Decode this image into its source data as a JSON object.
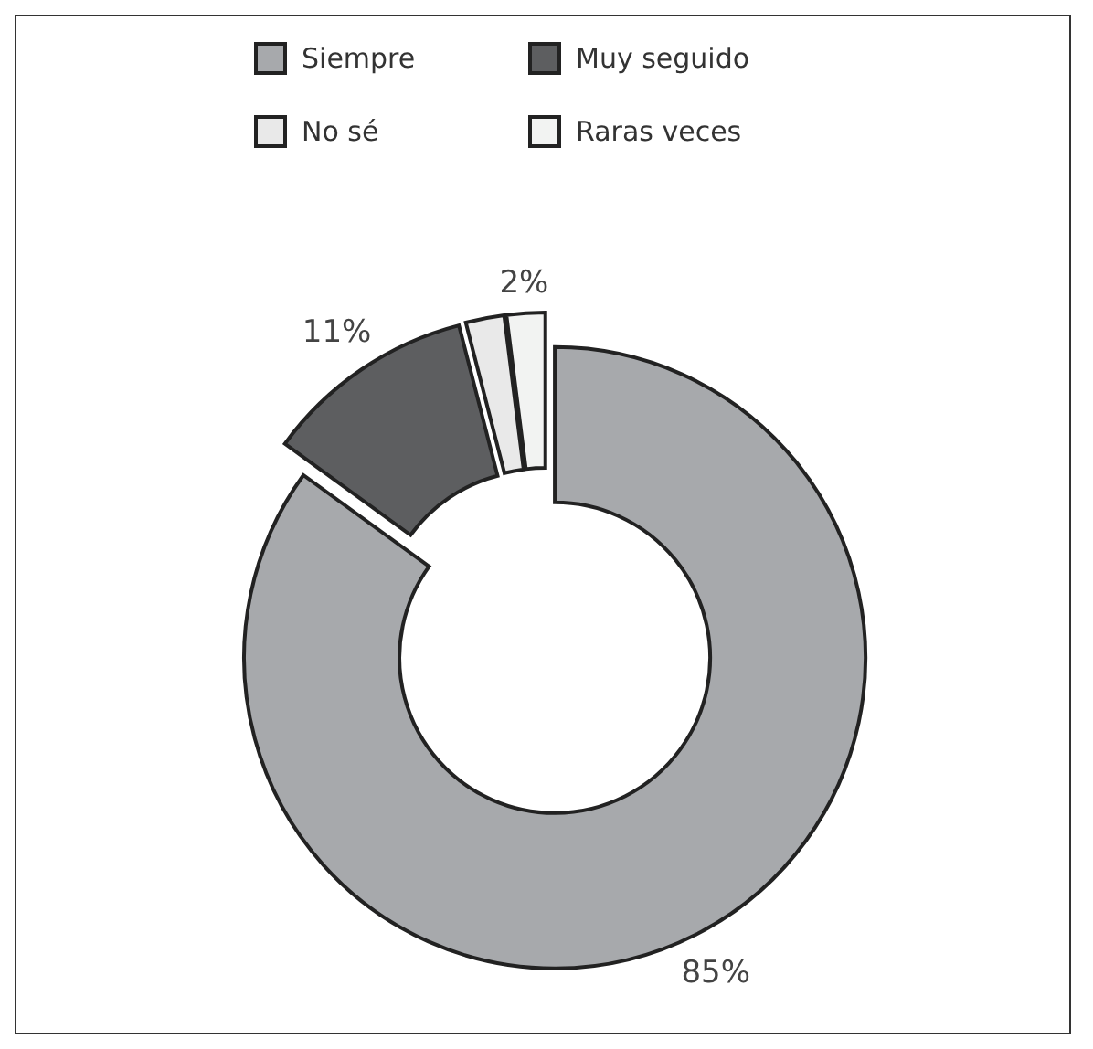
{
  "chart_data": {
    "type": "donut",
    "categories": [
      "Siempre",
      "Muy seguido",
      "No sé",
      "Raras veces"
    ],
    "values": [
      85,
      11,
      2,
      2
    ],
    "colors": [
      "#a7a9ac",
      "#5d5e60",
      "#e9e9e9",
      "#f2f3f2"
    ],
    "value_labels": [
      "85%",
      "11%",
      null,
      "2%"
    ],
    "legend": "top"
  }
}
